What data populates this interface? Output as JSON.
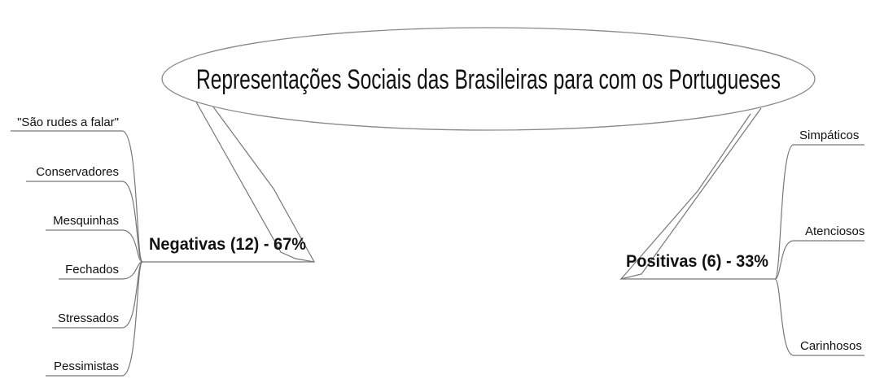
{
  "central_topic": "Representações Sociais das Brasileiras para com os Portugueses",
  "branches": [
    {
      "side": "left",
      "label": "Negativas (12) - 67%",
      "items": [
        "\"São rudes a falar\"",
        "Conservadores",
        "Mesquinhas",
        "Fechados",
        "Stressados",
        "Pessimistas"
      ]
    },
    {
      "side": "right",
      "label": "Positivas (6) - 33%",
      "items": [
        "Simpáticos",
        "Atenciosos",
        "Carinhosos"
      ]
    }
  ]
}
